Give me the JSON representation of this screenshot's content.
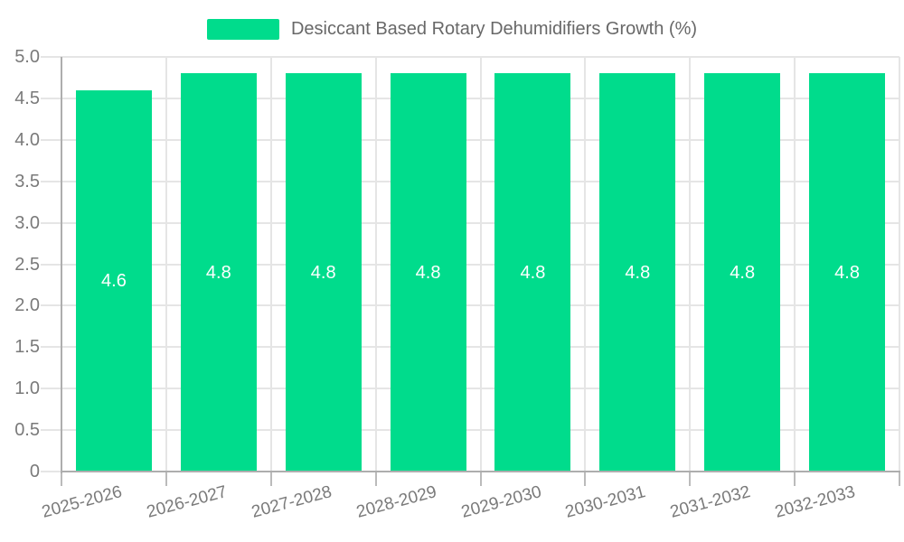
{
  "chart_data": {
    "type": "bar",
    "title": "Desiccant Based Rotary Dehumidifiers Growth (%)",
    "legend": {
      "label": "Desiccant Based Rotary Dehumidifiers Growth (%)",
      "position": "top-center"
    },
    "categories": [
      "2025-2026",
      "2026-2027",
      "2027-2028",
      "2028-2029",
      "2029-2030",
      "2030-2031",
      "2031-2032",
      "2032-2033"
    ],
    "series": [
      {
        "name": "Desiccant Based Rotary Dehumidifiers Growth (%)",
        "values": [
          4.6,
          4.8,
          4.8,
          4.8,
          4.8,
          4.8,
          4.8,
          4.8
        ],
        "data_labels": [
          "4.6",
          "4.8",
          "4.8",
          "4.8",
          "4.8",
          "4.8",
          "4.8",
          "4.8"
        ]
      }
    ],
    "xlabel": "",
    "ylabel": "",
    "ylim": [
      0,
      5
    ],
    "ytick_step": 0.5,
    "ytick_labels": [
      "0",
      "0.5",
      "1.0",
      "1.5",
      "2.0",
      "2.5",
      "3.0",
      "3.5",
      "4.0",
      "4.5",
      "5.0"
    ],
    "grid": true,
    "x_label_rotation_deg": -15,
    "colors": {
      "bar": "#00DC8C",
      "grid": "#e5e5e5",
      "axis": "#aeaeae",
      "x_tick": "#bbbbbb",
      "tick_label": "#7a7a7a",
      "title": "#686868",
      "bar_label": "#ffffff"
    }
  }
}
